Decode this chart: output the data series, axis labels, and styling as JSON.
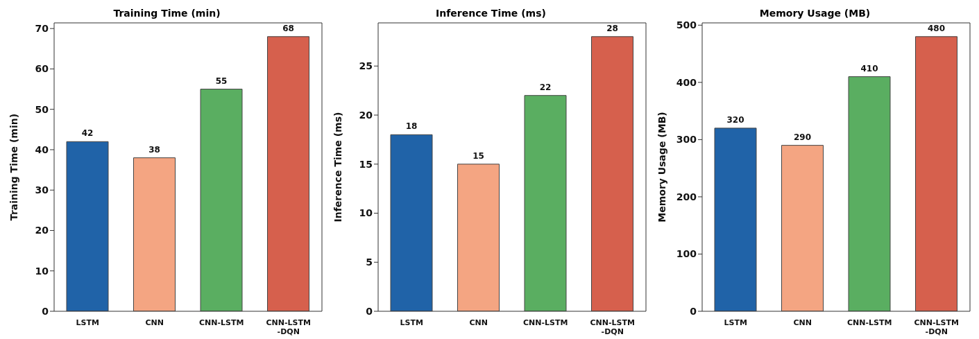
{
  "chart_data": [
    {
      "type": "bar",
      "title": "Training Time (min)",
      "ylabel": "Training Time (min)",
      "categories": [
        "LSTM",
        "CNN",
        "CNN-LSTM",
        "CNN-LSTM\n-DQN"
      ],
      "values": [
        42,
        38,
        55,
        68
      ],
      "colors": [
        "#2063a8",
        "#f4a582",
        "#5aae61",
        "#d6604d"
      ],
      "ylim": [
        0,
        71.4
      ],
      "yticks": [
        0,
        10,
        20,
        30,
        40,
        50,
        60,
        70
      ],
      "data_labels": true,
      "grid": false,
      "legend": false
    },
    {
      "type": "bar",
      "title": "Inference Time (ms)",
      "ylabel": "Inference Time (ms)",
      "categories": [
        "LSTM",
        "CNN",
        "CNN-LSTM",
        "CNN-LSTM\n-DQN"
      ],
      "values": [
        18,
        15,
        22,
        28
      ],
      "colors": [
        "#2063a8",
        "#f4a582",
        "#5aae61",
        "#d6604d"
      ],
      "ylim": [
        0,
        29.4
      ],
      "yticks": [
        0,
        5,
        10,
        15,
        20,
        25
      ],
      "data_labels": true,
      "grid": false,
      "legend": false
    },
    {
      "type": "bar",
      "title": "Memory Usage (MB)",
      "ylabel": "Memory Usage (MB)",
      "categories": [
        "LSTM",
        "CNN",
        "CNN-LSTM",
        "CNN-LSTM\n-DQN"
      ],
      "values": [
        320,
        290,
        410,
        480
      ],
      "colors": [
        "#2063a8",
        "#f4a582",
        "#5aae61",
        "#d6604d"
      ],
      "ylim": [
        0,
        504
      ],
      "yticks": [
        0,
        100,
        200,
        300,
        400,
        500
      ],
      "data_labels": true,
      "grid": false,
      "legend": false
    }
  ]
}
